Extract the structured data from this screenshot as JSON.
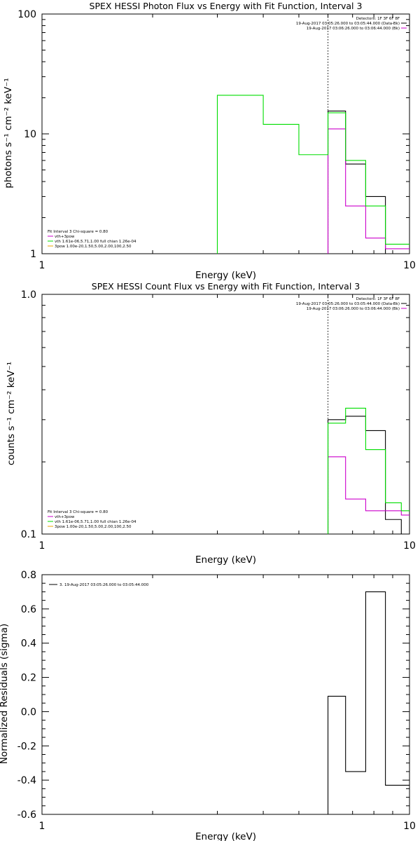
{
  "colors": {
    "black": "#000000",
    "green": "#00dd00",
    "magenta": "#cc00cc",
    "orange": "#e8a400",
    "background": "#ffffff"
  },
  "chart_data": [
    {
      "type": "line",
      "title": "SPEX HESSI Photon Flux vs Energy with Fit Function, Interval 3",
      "xlabel": "Energy (keV)",
      "ylabel": "photons s⁻¹ cm⁻² keV⁻¹",
      "xscale": "log",
      "yscale": "log",
      "xlim": [
        1,
        10
      ],
      "ylim": [
        1,
        100
      ],
      "xtick_labels": [
        "1",
        "10"
      ],
      "ytick_labels": [
        "1",
        "10",
        "100"
      ],
      "fit_threshold_keV": 6.0,
      "legend_top_right": [
        "Detectors: 1F 3F 6F 8F",
        "19-Aug-2017 03:05:26.000 to 03:05:44.000 (Data-Bk)",
        "19-Aug-2017 03:06:26.000 to 03:06:44.000 (Bk)"
      ],
      "legend_bottom_left": [
        "Fit Interval 3   Chi-square = 0.80",
        "vth+3pow",
        "vth 1.61e-06,5.71,1.00   full chian 1.26e-04",
        "3pow 1.00e-20,1.50,5.00,2.00,100,2.50"
      ],
      "series": [
        {
          "name": "19-Aug-2017 03:05:26.000 to 03:05:44.000 (Data-Bk)",
          "color": "#000000",
          "edges": [
            6.0,
            6.7,
            7.6,
            8.6,
            9.5,
            10.0
          ],
          "values": [
            15.5,
            5.6,
            3.0,
            1.0,
            1.0
          ]
        },
        {
          "name": "19-Aug-2017 03:06:26.000 to 03:06:44.000 (Bk)",
          "color": "#cc00cc",
          "edges": [
            6.0,
            6.7,
            7.6,
            8.6,
            9.5,
            10.0
          ],
          "values": [
            11.0,
            2.5,
            1.35,
            1.1,
            1.1
          ]
        },
        {
          "name": "vth",
          "color": "#00dd00",
          "edges": [
            3.0,
            4.0,
            5.0,
            6.0,
            6.7,
            7.6,
            8.6,
            9.5,
            10.0
          ],
          "values": [
            21,
            12,
            6.7,
            15.0,
            6.0,
            2.5,
            1.2,
            1.2
          ]
        },
        {
          "name": "3pow",
          "color": "#e8a400",
          "edges": [],
          "values": []
        }
      ]
    },
    {
      "type": "line",
      "title": "SPEX HESSI Count Flux vs Energy with Fit Function, Interval 3",
      "xlabel": "Energy (keV)",
      "ylabel": "counts s⁻¹ cm⁻² keV⁻¹",
      "xscale": "log",
      "yscale": "log",
      "xlim": [
        1,
        10
      ],
      "ylim": [
        0.1,
        1.0
      ],
      "xtick_labels": [
        "1",
        "10"
      ],
      "ytick_labels": [
        "0.1",
        "1.0"
      ],
      "fit_threshold_keV": 6.0,
      "legend_top_right": [
        "Detectors: 1F 3F 6F 8F",
        "19-Aug-2017 03:05:26.000 to 03:05:44.000 (Data-Bk)",
        "19-Aug-2017 03:06:26.000 to 03:06:44.000 (Bk)"
      ],
      "legend_bottom_left": [
        "Fit Interval 3   Chi-square = 0.80",
        "vth+3pow",
        "vth 1.61e-06,5.71,1.00   full chian 1.26e-04",
        "3pow 1.00e-20,1.50,5.00,2.00,100,2.50"
      ],
      "series": [
        {
          "name": "19-Aug-2017 03:05:26.000 to 03:05:44.000 (Data-Bk)",
          "color": "#000000",
          "edges": [
            6.0,
            6.7,
            7.6,
            8.6,
            9.5,
            10.0
          ],
          "values": [
            0.3,
            0.31,
            0.27,
            0.115,
            0.1
          ]
        },
        {
          "name": "19-Aug-2017 03:06:26.000 to 03:06:44.000 (Bk)",
          "color": "#cc00cc",
          "edges": [
            6.0,
            6.7,
            7.6,
            8.6,
            9.5,
            10.0
          ],
          "values": [
            0.21,
            0.14,
            0.125,
            0.125,
            0.12
          ]
        },
        {
          "name": "vth+3pow",
          "color": "#00dd00",
          "edges": [
            6.0,
            6.7,
            7.6,
            8.6,
            9.5,
            10.0
          ],
          "values": [
            0.29,
            0.335,
            0.225,
            0.135,
            0.125
          ]
        }
      ]
    },
    {
      "type": "line",
      "title": "",
      "xlabel": "Energy (keV)",
      "ylabel": "Normalized Residuals (sigma)",
      "xscale": "log",
      "yscale": "linear",
      "xlim": [
        1,
        10
      ],
      "ylim": [
        -0.6,
        0.8
      ],
      "xtick_labels": [
        "1",
        "10"
      ],
      "ytick_labels": [
        "-0.6",
        "-0.4",
        "-0.2",
        "0.0",
        "0.2",
        "0.4",
        "0.6",
        "0.8"
      ],
      "legend_top_left": [
        "3. 19-Aug-2017 03:05:26.000 to 03:05:44.000"
      ],
      "series": [
        {
          "name": "3. 19-Aug-2017 03:05:26.000 to 03:05:44.000",
          "color": "#000000",
          "edges": [
            6.0,
            6.7,
            7.6,
            8.6,
            9.5,
            10.0
          ],
          "values": [
            0.09,
            -0.35,
            0.7,
            -0.43,
            -0.43
          ]
        }
      ]
    }
  ]
}
